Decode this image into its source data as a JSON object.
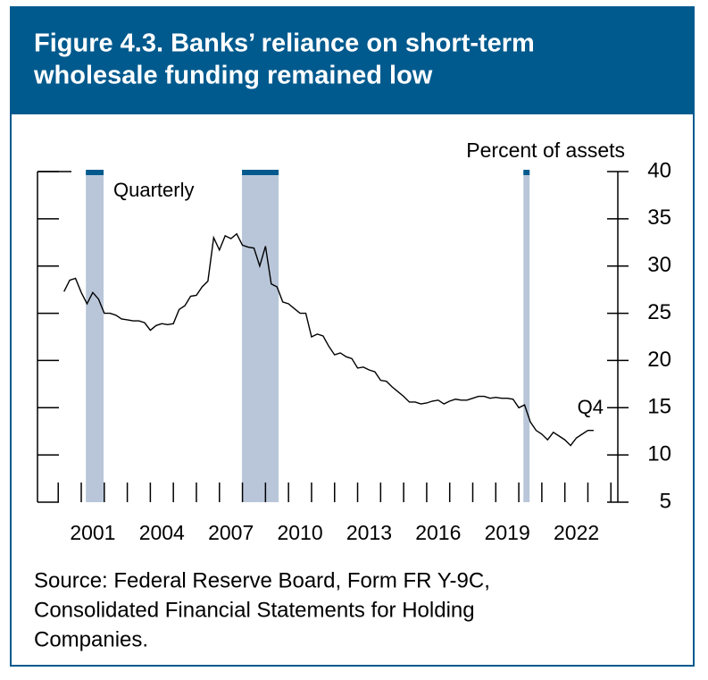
{
  "chart_data": {
    "type": "line",
    "title": [
      "Figure 4.3. Banks’ reliance on short-term",
      "wholesale funding remained low"
    ],
    "y_axis_label": "Percent of assets",
    "annotations": [
      "Quarterly",
      "Q4"
    ],
    "source": [
      "Source: Federal Reserve Board, Form FR Y-9C,",
      "Consolidated Financial Statements for Holding",
      "Companies."
    ],
    "x": [
      2000.25,
      2000.5,
      2000.75,
      2001,
      2001.25,
      2001.5,
      2001.75,
      2002,
      2002.25,
      2002.5,
      2002.75,
      2003,
      2003.25,
      2003.5,
      2003.75,
      2004,
      2004.25,
      2004.5,
      2004.75,
      2005,
      2005.25,
      2005.5,
      2005.75,
      2006,
      2006.25,
      2006.5,
      2006.75,
      2007,
      2007.25,
      2007.5,
      2007.75,
      2008,
      2008.25,
      2008.5,
      2008.75,
      2009,
      2009.25,
      2009.5,
      2009.75,
      2010,
      2010.25,
      2010.5,
      2010.75,
      2011,
      2011.25,
      2011.5,
      2011.75,
      2012,
      2012.25,
      2012.5,
      2012.75,
      2013,
      2013.25,
      2013.5,
      2013.75,
      2014,
      2014.25,
      2014.5,
      2014.75,
      2015,
      2015.25,
      2015.5,
      2015.75,
      2016,
      2016.25,
      2016.5,
      2016.75,
      2017,
      2017.25,
      2017.5,
      2017.75,
      2018,
      2018.25,
      2018.5,
      2018.75,
      2019,
      2019.25,
      2019.5,
      2019.75,
      2020,
      2020.25,
      2020.5,
      2020.75,
      2021,
      2021.25,
      2021.5,
      2021.75,
      2022,
      2022.25,
      2022.5,
      2022.75,
      2023,
      2023.25
    ],
    "series": [
      {
        "name": "Short-term wholesale funding",
        "color": "#000000",
        "values": [
          27.3,
          28.5,
          28.7,
          27.2,
          26.0,
          27.2,
          26.5,
          25.0,
          25.0,
          24.8,
          24.4,
          24.3,
          24.2,
          24.2,
          24.0,
          23.2,
          23.7,
          23.9,
          23.8,
          23.9,
          25.4,
          25.8,
          26.8,
          26.9,
          27.8,
          28.4,
          33.0,
          31.7,
          33.2,
          32.9,
          33.4,
          32.2,
          32.0,
          31.9,
          30.0,
          32.1,
          28.1,
          27.8,
          26.2,
          26.0,
          25.5,
          25.0,
          25.0,
          22.5,
          22.8,
          22.6,
          21.5,
          20.6,
          20.8,
          20.4,
          20.2,
          19.2,
          19.3,
          19.0,
          18.8,
          17.9,
          17.8,
          17.2,
          16.7,
          16.2,
          15.6,
          15.6,
          15.4,
          15.5,
          15.7,
          15.8,
          15.4,
          15.7,
          15.9,
          15.8,
          15.8,
          16.0,
          16.2,
          16.2,
          16.0,
          16.1,
          16.0,
          16.0,
          15.9,
          15.0,
          15.3,
          13.5,
          12.6,
          12.2,
          11.6,
          12.4,
          12.0,
          11.6,
          11.0,
          11.8,
          12.2,
          12.6,
          12.6
        ]
      }
    ],
    "recessions": [
      [
        2001.2,
        2001.97
      ],
      [
        2007.98,
        2009.57
      ],
      [
        2020.2,
        2020.47
      ]
    ],
    "recession_color": "#b9c6d9",
    "xlim": [
      1999.1,
      2024.3
    ],
    "xticks": [
      {
        "value": 2001.5,
        "label": "2001"
      },
      {
        "value": 2004.5,
        "label": "2004"
      },
      {
        "value": 2007.5,
        "label": "2007"
      },
      {
        "value": 2010.5,
        "label": "2010"
      },
      {
        "value": 2013.5,
        "label": "2013"
      },
      {
        "value": 2016.5,
        "label": "2016"
      },
      {
        "value": 2019.5,
        "label": "2019"
      },
      {
        "value": 2022.5,
        "label": "2022"
      }
    ],
    "xtick_marks": [
      2000,
      2001,
      2002,
      2003,
      2004,
      2005,
      2006,
      2007,
      2008,
      2009,
      2010,
      2011,
      2012,
      2013,
      2014,
      2015,
      2016,
      2017,
      2018,
      2019,
      2020,
      2021,
      2022,
      2023,
      2024
    ],
    "ylim": [
      5,
      40
    ],
    "yticks": [
      5,
      10,
      15,
      20,
      25,
      30,
      35,
      40
    ]
  }
}
